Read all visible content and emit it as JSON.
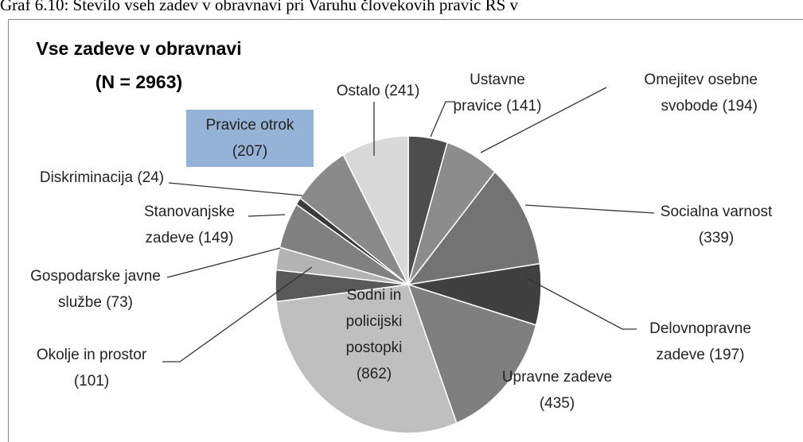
{
  "caption": "Graf 6.10: Število vseh zadev v obravnavi pri Varuhu človekovih pravic RS v",
  "chart_data": {
    "type": "pie",
    "title": "Vse zadeve v obravnavi",
    "subtitle": "(N = 2963)",
    "categories": [
      "Ustavne pravice",
      "Omejitev osebne svobode",
      "Socialna varnost",
      "Delovnopravne zadeve",
      "Upravne zadeve",
      "Sodni in policijski postopki",
      "Okolje in prostor",
      "Gospodarske javne službe",
      "Stanovanjske zadeve",
      "Diskriminacija",
      "Pravice otrok",
      "Ostalo"
    ],
    "values": [
      141,
      194,
      339,
      197,
      435,
      862,
      101,
      73,
      149,
      24,
      207,
      241
    ],
    "value_labels": [
      "(141)",
      "(194)",
      "(339)",
      "(197)",
      "(435)",
      "(862)",
      "(101)",
      "(73)",
      "(149)",
      "(24)",
      "(207)",
      "(241)"
    ],
    "colors": [
      "#4d4d4d",
      "#8c8c8c",
      "#737373",
      "#404040",
      "#7f7f7f",
      "#bfbfbf",
      "#595959",
      "#b3b3b3",
      "#808080",
      "#3a3a3a",
      "#8a8a8a",
      "#d9d9d9"
    ]
  }
}
